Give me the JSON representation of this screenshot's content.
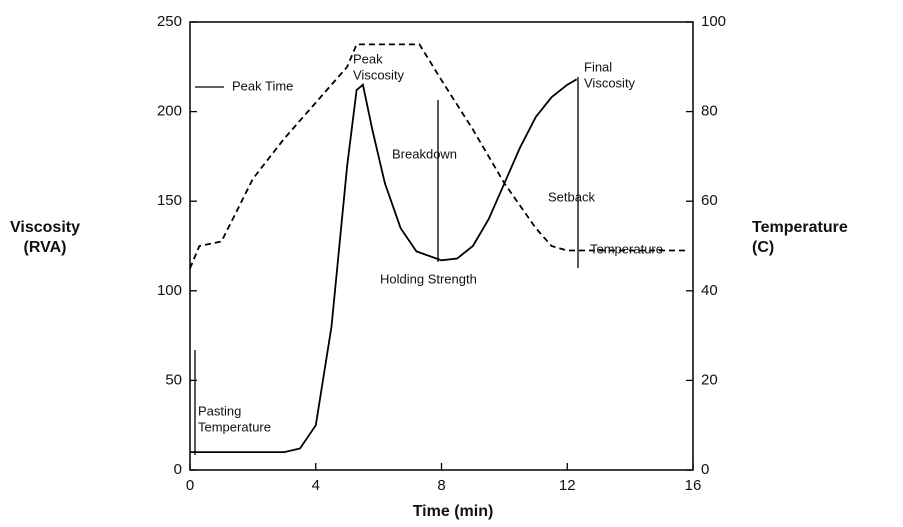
{
  "chart_data": {
    "type": "line",
    "xlabel": "Time (min)",
    "ylabel": [
      "Viscosity",
      "(RVA)"
    ],
    "y2label": [
      "Temperature",
      "(C)"
    ],
    "xlim": [
      0,
      16
    ],
    "xticks": [
      0,
      4,
      8,
      12,
      16
    ],
    "ylim": [
      0,
      250
    ],
    "yticks": [
      0,
      50,
      100,
      150,
      200,
      250
    ],
    "y2lim": [
      0,
      100
    ],
    "y2ticks": [
      0,
      20,
      40,
      60,
      80,
      100
    ],
    "series": [
      {
        "name": "Viscosity",
        "color": "#000000",
        "style": "solid",
        "x": [
          0,
          3,
          3.5,
          4,
          4.5,
          5,
          5.3,
          5.5,
          5.8,
          6.2,
          6.7,
          7.2,
          8,
          8.5,
          9,
          9.5,
          10,
          10.5,
          11,
          11.5,
          12,
          12.3
        ],
        "values": [
          10,
          10,
          12,
          25,
          80,
          170,
          212,
          215,
          190,
          160,
          135,
          122,
          117,
          118,
          125,
          140,
          160,
          180,
          197,
          208,
          215,
          218
        ]
      },
      {
        "name": "Temperature",
        "color": "#000000",
        "style": "dashed",
        "axis": "y2",
        "x": [
          0,
          0.3,
          1,
          1.5,
          2,
          3,
          4,
          5,
          5.3,
          7.3,
          8,
          9,
          10,
          11,
          11.5,
          12,
          13,
          15.8
        ],
        "values": [
          45,
          50,
          51,
          58,
          65,
          74,
          82,
          90,
          95,
          95,
          87,
          76,
          64,
          54,
          50,
          49,
          49,
          49
        ]
      }
    ],
    "annotations": [
      [
        "Peak Time"
      ],
      [
        "Peak",
        "Viscosity"
      ],
      [
        "Breakdown"
      ],
      [
        "Final",
        "Viscosity"
      ],
      [
        "Setback"
      ],
      [
        "Holding Strength"
      ],
      [
        "Pasting",
        "Temperature"
      ],
      [
        "Temperature"
      ]
    ]
  }
}
